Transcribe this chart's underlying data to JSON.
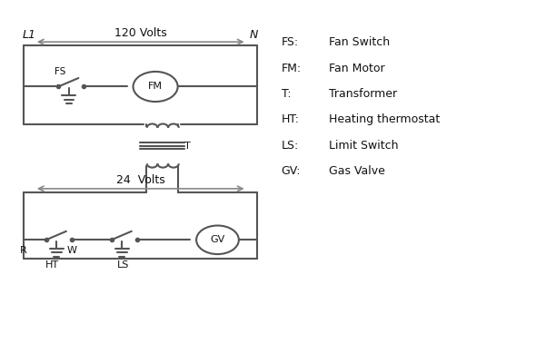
{
  "background_color": "#ffffff",
  "line_color": "#555555",
  "text_color": "#111111",
  "legend_items": [
    [
      "FS:",
      "Fan Switch"
    ],
    [
      "FM:",
      "Fan Motor"
    ],
    [
      "T:",
      "Transformer"
    ],
    [
      "HT:",
      "Heating thermostat"
    ],
    [
      "LS:",
      "Limit Switch"
    ],
    [
      "GV:",
      "Gas Valve"
    ]
  ]
}
